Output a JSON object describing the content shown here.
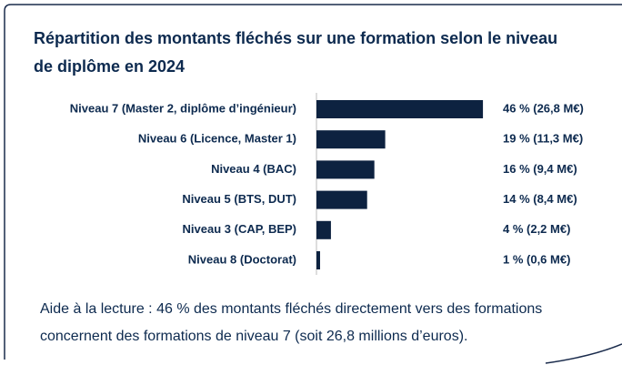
{
  "chart_data": {
    "type": "bar",
    "orientation": "horizontal",
    "title": "Répartition des montants fléchés sur une formation selon le niveau de diplôme en 2024",
    "categories": [
      "Niveau 7 (Master 2, diplôme d’ingénieur)",
      "Niveau 6 (Licence, Master 1)",
      "Niveau 4 (BAC)",
      "Niveau 5 (BTS, DUT)",
      "Niveau  3 (CAP, BEP)",
      "Niveau 8 (Doctorat)"
    ],
    "values": [
      46,
      19,
      16,
      14,
      4,
      1
    ],
    "value_labels": [
      "46 % (26,8 M€)",
      "19 % (11,3 M€)",
      "16 % (9,4 M€)",
      "14 % (8,4 M€)",
      "4 % (2,2 M€)",
      "1 % (0,6 M€)"
    ],
    "color": "#0d2240",
    "xlim": [
      0,
      50
    ],
    "note": "Aide à la lecture : 46 % des montants fléchés directement vers des formations concernent des formations de niveau 7 (soit 26,8 millions d’euros)."
  }
}
